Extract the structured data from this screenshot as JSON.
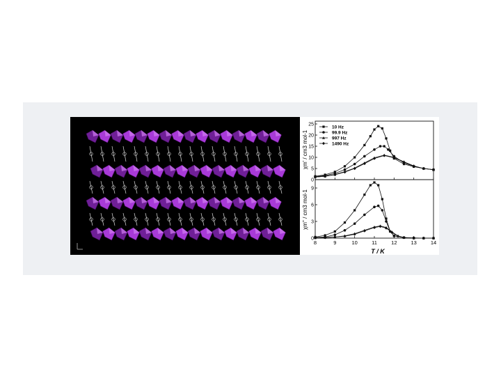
{
  "chart_data": [
    {
      "type": "line",
      "panel": "top",
      "ylabel": "χm' / cm3 mol-1",
      "xlim": [
        8,
        14
      ],
      "ylim": [
        0,
        25
      ],
      "yticks": [
        0,
        5,
        10,
        15,
        20,
        25
      ],
      "legend_position": "top-left",
      "series": [
        {
          "name": "10 Hz",
          "marker": "square",
          "x": [
            8,
            8.5,
            9,
            9.5,
            10,
            10.5,
            10.8,
            11.0,
            11.2,
            11.4,
            11.6,
            11.8,
            12,
            12.5,
            13,
            13.5,
            14
          ],
          "y": [
            1.5,
            2.2,
            3.5,
            6.0,
            10.0,
            15.5,
            19.5,
            22.5,
            24.0,
            23.0,
            18.5,
            13.0,
            9.5,
            7.0,
            5.8,
            5.0,
            4.5
          ]
        },
        {
          "name": "99.9 Hz",
          "marker": "circle",
          "x": [
            8,
            8.5,
            9,
            9.5,
            10,
            10.5,
            11.0,
            11.3,
            11.5,
            11.7,
            12,
            12.5,
            13,
            13.5,
            14
          ],
          "y": [
            1.3,
            1.8,
            2.8,
            4.5,
            7.0,
            10.5,
            13.5,
            15.0,
            15.0,
            13.5,
            10.5,
            7.5,
            6.0,
            5.0,
            4.5
          ]
        },
        {
          "name": "997 Hz",
          "marker": "triangle",
          "x": [
            8,
            8.5,
            9,
            9.5,
            10,
            10.5,
            11.0,
            11.5,
            12,
            12.5,
            13,
            13.5,
            14
          ],
          "y": [
            1.2,
            1.5,
            2.3,
            3.6,
            5.2,
            7.5,
            9.8,
            11.0,
            10.0,
            8.0,
            6.2,
            5.0,
            4.4
          ]
        },
        {
          "name": "1490 Hz",
          "marker": "diamond",
          "x": [
            8,
            8.5,
            9,
            9.5,
            10,
            10.5,
            11.0,
            11.5,
            12,
            12.5,
            13,
            13.5,
            14
          ],
          "y": [
            1.2,
            1.5,
            2.2,
            3.4,
            5.0,
            7.2,
            9.5,
            10.8,
            9.8,
            7.9,
            6.1,
            5.0,
            4.4
          ]
        }
      ]
    },
    {
      "type": "line",
      "panel": "bottom",
      "xlabel": "T / K",
      "ylabel": "χm'' / cm3 mol-1",
      "xlim": [
        8,
        14
      ],
      "ylim": [
        0,
        10
      ],
      "xticks": [
        8,
        9,
        10,
        11,
        12,
        13,
        14
      ],
      "yticks": [
        0,
        3,
        6,
        9
      ],
      "series": [
        {
          "name": "10 Hz",
          "marker": "square",
          "x": [
            8,
            8.5,
            9,
            9.5,
            10,
            10.5,
            10.8,
            11.0,
            11.2,
            11.4,
            11.6,
            11.8,
            12,
            12.5,
            13,
            13.5,
            14
          ],
          "y": [
            0.2,
            0.5,
            1.2,
            2.8,
            5.0,
            7.8,
            9.5,
            10.0,
            9.5,
            7.0,
            3.5,
            1.2,
            0.4,
            0.1,
            0.05,
            0.0,
            0.0
          ]
        },
        {
          "name": "99.9 Hz",
          "marker": "circle",
          "x": [
            8,
            8.5,
            9,
            9.5,
            10,
            10.5,
            11.0,
            11.2,
            11.4,
            11.6,
            11.8,
            12,
            12.5,
            13,
            13.5,
            14
          ],
          "y": [
            0.1,
            0.2,
            0.6,
            1.4,
            2.6,
            4.2,
            5.6,
            5.8,
            5.0,
            3.0,
            1.2,
            0.4,
            0.1,
            0.0,
            0.0,
            0.0
          ]
        },
        {
          "name": "997 Hz",
          "marker": "triangle",
          "x": [
            8,
            8.5,
            9,
            9.5,
            10,
            10.5,
            11.0,
            11.3,
            11.6,
            11.9,
            12.2,
            12.5,
            13,
            13.5,
            14
          ],
          "y": [
            0.05,
            0.1,
            0.2,
            0.4,
            0.8,
            1.4,
            2.0,
            2.2,
            1.9,
            1.1,
            0.4,
            0.1,
            0.0,
            0.0,
            0.0
          ]
        },
        {
          "name": "1490 Hz",
          "marker": "diamond",
          "x": [
            8,
            8.5,
            9,
            9.5,
            10,
            10.5,
            11.0,
            11.3,
            11.6,
            11.9,
            12.2,
            12.5,
            13,
            13.5,
            14
          ],
          "y": [
            0.05,
            0.1,
            0.2,
            0.35,
            0.7,
            1.3,
            1.9,
            2.1,
            1.8,
            1.0,
            0.35,
            0.1,
            0.0,
            0.0,
            0.0
          ]
        }
      ]
    }
  ],
  "figure": {
    "left_panel": "crystal-structure-rendering",
    "colors": {
      "page": "#ffffff",
      "band": "#eef0f3",
      "structure_bg": "#000000",
      "polyhedra": "#a83ad8",
      "polyhedra_dark": "#6f1f97",
      "ligand": "#d9d9d9",
      "plot_line": "#111111"
    }
  }
}
